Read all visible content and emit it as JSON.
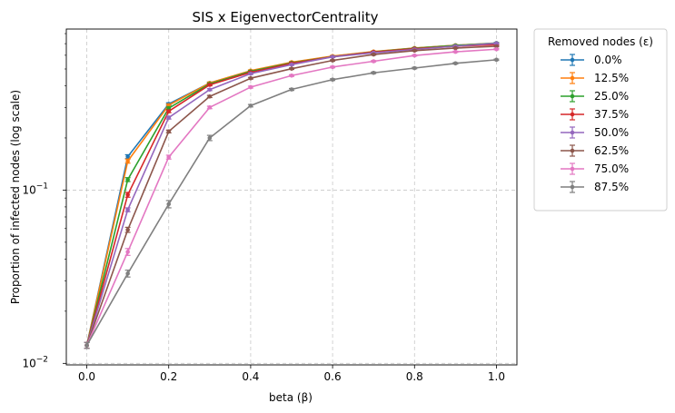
{
  "chart_data": {
    "type": "line",
    "title": "SIS x EigenvectorCentrality",
    "xlabel": "beta (β)",
    "ylabel": "Proportion of infected nodes (log scale)",
    "yscale": "log",
    "xlim": [
      -0.05,
      1.05
    ],
    "ylim": [
      0.0098,
      0.85
    ],
    "grid": true,
    "legend_title": "Removed nodes (ε)",
    "legend_placement": "outside top-right",
    "x": [
      0.0,
      0.1,
      0.2,
      0.3,
      0.4,
      0.5,
      0.6,
      0.7,
      0.8,
      0.9,
      1.0
    ],
    "x_ticks": [
      {
        "v": 0.0,
        "label": "0.0"
      },
      {
        "v": 0.2,
        "label": "0.2"
      },
      {
        "v": 0.4,
        "label": "0.4"
      },
      {
        "v": 0.6,
        "label": "0.6"
      },
      {
        "v": 0.8,
        "label": "0.8"
      },
      {
        "v": 1.0,
        "label": "1.0"
      }
    ],
    "y_ticks": [
      {
        "v": 0.01,
        "base": "10",
        "exp": "−2"
      },
      {
        "v": 0.1,
        "base": "10",
        "exp": "−1"
      }
    ],
    "series": [
      {
        "name": "0.0%",
        "color": "#1f77b4",
        "values": [
          0.0127,
          0.156,
          0.314,
          0.415,
          0.487,
          0.545,
          0.591,
          0.628,
          0.659,
          0.685,
          0.706
        ],
        "errors": [
          0.0005,
          0.004,
          0.005,
          0.005,
          0.005,
          0.005,
          0.005,
          0.005,
          0.005,
          0.005,
          0.005
        ]
      },
      {
        "name": "12.5%",
        "color": "#ff7f0e",
        "values": [
          0.0127,
          0.147,
          0.309,
          0.415,
          0.489,
          0.547,
          0.593,
          0.63,
          0.66,
          0.685,
          0.704
        ],
        "errors": [
          0.0005,
          0.004,
          0.005,
          0.005,
          0.005,
          0.005,
          0.005,
          0.005,
          0.005,
          0.005,
          0.005
        ]
      },
      {
        "name": "25.0%",
        "color": "#2ca02c",
        "values": [
          0.0127,
          0.115,
          0.297,
          0.41,
          0.484,
          0.542,
          0.589,
          0.627,
          0.658,
          0.683,
          0.703
        ],
        "errors": [
          0.0005,
          0.003,
          0.005,
          0.005,
          0.005,
          0.005,
          0.005,
          0.005,
          0.005,
          0.005,
          0.005
        ]
      },
      {
        "name": "37.5%",
        "color": "#d62728",
        "values": [
          0.0127,
          0.094,
          0.285,
          0.405,
          0.478,
          0.538,
          0.588,
          0.626,
          0.654,
          0.676,
          0.691
        ],
        "errors": [
          0.0005,
          0.003,
          0.005,
          0.005,
          0.005,
          0.005,
          0.005,
          0.005,
          0.005,
          0.005,
          0.005
        ]
      },
      {
        "name": "50.0%",
        "color": "#9467bd",
        "values": [
          0.0127,
          0.077,
          0.262,
          0.38,
          0.47,
          0.53,
          0.587,
          0.62,
          0.648,
          0.677,
          0.702
        ],
        "errors": [
          0.0005,
          0.002,
          0.005,
          0.005,
          0.005,
          0.005,
          0.005,
          0.005,
          0.005,
          0.005,
          0.005
        ]
      },
      {
        "name": "62.5%",
        "color": "#8c564b",
        "values": [
          0.0127,
          0.059,
          0.218,
          0.347,
          0.442,
          0.502,
          0.56,
          0.606,
          0.638,
          0.66,
          0.676
        ],
        "errors": [
          0.0005,
          0.002,
          0.004,
          0.005,
          0.005,
          0.005,
          0.005,
          0.005,
          0.005,
          0.005,
          0.005
        ]
      },
      {
        "name": "75.0%",
        "color": "#e377c2",
        "values": [
          0.0127,
          0.044,
          0.155,
          0.3,
          0.393,
          0.458,
          0.513,
          0.554,
          0.598,
          0.628,
          0.65
        ],
        "errors": [
          0.0005,
          0.002,
          0.004,
          0.005,
          0.005,
          0.005,
          0.005,
          0.005,
          0.005,
          0.005,
          0.005
        ]
      },
      {
        "name": "87.5%",
        "color": "#7f7f7f",
        "values": [
          0.0127,
          0.033,
          0.083,
          0.2,
          0.307,
          0.381,
          0.434,
          0.475,
          0.506,
          0.539,
          0.565
        ],
        "errors": [
          0.0005,
          0.0015,
          0.004,
          0.007,
          0.005,
          0.005,
          0.005,
          0.005,
          0.005,
          0.005,
          0.005
        ]
      }
    ]
  }
}
